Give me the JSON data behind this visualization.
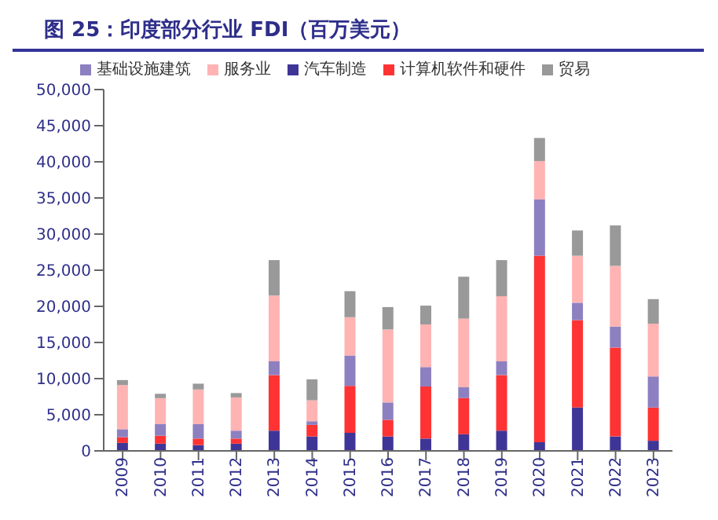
{
  "chart_data": {
    "type": "bar",
    "title": "图 25：印度部分行业 FDI（百万美元）",
    "stacked": true,
    "legend": "top",
    "grid": false,
    "categories": [
      "2009",
      "2010",
      "2011",
      "2012",
      "2013",
      "2014",
      "2015",
      "2016",
      "2017",
      "2018",
      "2019",
      "2020",
      "2021",
      "2022",
      "2023"
    ],
    "ylim": [
      0,
      50000
    ],
    "yticks": [
      {
        "value": 0,
        "label": "0"
      },
      {
        "value": 5000,
        "label": "5,000"
      },
      {
        "value": 10000,
        "label": "10,000"
      },
      {
        "value": 15000,
        "label": "15,000"
      },
      {
        "value": 20000,
        "label": "20,000"
      },
      {
        "value": 25000,
        "label": "25,000"
      },
      {
        "value": 30000,
        "label": "30,000"
      },
      {
        "value": 35000,
        "label": "35,000"
      },
      {
        "value": 40000,
        "label": "40,000"
      },
      {
        "value": 45000,
        "label": "45,000"
      },
      {
        "value": 50000,
        "label": "50,000"
      }
    ],
    "series": [
      {
        "name": "汽车制造",
        "color": "#3f3597",
        "values": [
          1100,
          1000,
          800,
          1000,
          2800,
          2000,
          2500,
          2000,
          1700,
          2300,
          2800,
          1200,
          6000,
          2000,
          1400
        ]
      },
      {
        "name": "计算机软件和硬件",
        "color": "#ff3333",
        "values": [
          800,
          1100,
          900,
          700,
          7700,
          1600,
          6500,
          2300,
          7200,
          5000,
          7700,
          25800,
          12100,
          12300,
          4600
        ]
      },
      {
        "name": "基础设施建筑",
        "color": "#8d80c0",
        "values": [
          1100,
          1600,
          2000,
          1100,
          1900,
          500,
          4200,
          2400,
          2700,
          1500,
          1900,
          7800,
          2400,
          2900,
          4300
        ]
      },
      {
        "name": "服务业",
        "color": "#ffb3b3",
        "values": [
          6100,
          3600,
          4800,
          4600,
          9100,
          2900,
          5300,
          10100,
          5900,
          9500,
          9000,
          5300,
          6500,
          8400,
          7300
        ]
      },
      {
        "name": "贸易",
        "color": "#999999",
        "values": [
          700,
          600,
          800,
          600,
          4900,
          2900,
          3600,
          3100,
          2600,
          5800,
          5000,
          3200,
          3500,
          5600,
          3400
        ]
      }
    ]
  }
}
